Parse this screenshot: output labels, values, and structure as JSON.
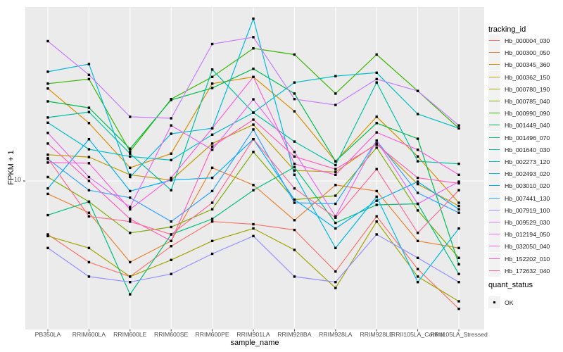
{
  "chart_data": {
    "type": "line",
    "title": "",
    "xlabel": "sample_name",
    "ylabel": "FPKM + 1",
    "y_scale": "log10",
    "y_ticks": [
      {
        "value": 10,
        "label": "10"
      }
    ],
    "y_range_approx": [
      1.6,
      92
    ],
    "grid": "major-on",
    "legend_position": "right",
    "marker": "filled-black-square",
    "x_categories": [
      "PB350LA",
      "RRIM600LA",
      "RRIM600LE",
      "RRIM600SE",
      "RRIM600PE",
      "RRIM901LA",
      "RRIM928BA",
      "RRIM928LA",
      "RRIM928LE",
      "RRII105LA_Control",
      "RRII105LA_Stressed"
    ],
    "series": [
      {
        "name": "Hb_000004_030",
        "color": "#F8766D",
        "values": [
          5.1,
          3.6,
          3.0,
          4.4,
          6.0,
          5.8,
          5.4,
          3.2,
          6.4,
          3.3,
          2.0
        ]
      },
      {
        "name": "Hb_000300_050",
        "color": "#EA8331",
        "values": [
          8.5,
          6.7,
          3.6,
          4.7,
          11.8,
          9.5,
          6.1,
          9.5,
          8.8,
          4.7,
          4.3
        ]
      },
      {
        "name": "Hb_000345_360",
        "color": "#D89000",
        "values": [
          32,
          20.7,
          11.8,
          14.1,
          34,
          37,
          24,
          12.8,
          22.4,
          13.6,
          7.6
        ]
      },
      {
        "name": "Hb_000362_150",
        "color": "#C09B00",
        "values": [
          13.9,
          13.5,
          10.8,
          10.1,
          16,
          20.3,
          11.4,
          11.2,
          16,
          9.6,
          7.3
        ]
      },
      {
        "name": "Hb_000780_190",
        "color": "#A3A500",
        "values": [
          5.0,
          4.3,
          3.0,
          3.7,
          4.7,
          5.5,
          4.2,
          2.6,
          6.0,
          3.0,
          2.2
        ]
      },
      {
        "name": "Hb_000785_040",
        "color": "#7CAE00",
        "values": [
          10.5,
          7.7,
          5.2,
          5.6,
          7.0,
          14.4,
          7.9,
          8.3,
          15.2,
          6.9,
          3.8
        ]
      },
      {
        "name": "Hb_000990_090",
        "color": "#39B600",
        "values": [
          34,
          36,
          14.5,
          28,
          37,
          53,
          49,
          30,
          49,
          31,
          19.4
        ]
      },
      {
        "name": "Hb_001449_040",
        "color": "#00BB4E",
        "values": [
          27.2,
          25.1,
          15,
          27.7,
          32.2,
          41,
          30,
          12.8,
          20.7,
          17,
          3.5
        ]
      },
      {
        "name": "Hb_001496_070",
        "color": "#00BF7D",
        "values": [
          6.5,
          7.7,
          2.4,
          5.1,
          6.2,
          8.9,
          11.9,
          5.9,
          7.4,
          7.5,
          3.1
        ]
      },
      {
        "name": "Hb_001640_030",
        "color": "#00C1A3",
        "values": [
          22.2,
          23.8,
          14.1,
          8.9,
          40.6,
          23.6,
          16.4,
          12.2,
          34.5,
          12.8,
          12.4
        ]
      },
      {
        "name": "Hb_002273_120",
        "color": "#00BFC4",
        "values": [
          20.8,
          14.9,
          13.6,
          13,
          17.9,
          23.6,
          34.5,
          37.4,
          39,
          23.2,
          19.4
        ]
      },
      {
        "name": "Hb_002493_020",
        "color": "#00BAE0",
        "values": [
          39.5,
          43.5,
          10.5,
          18.1,
          19.4,
          77,
          10.8,
          4.3,
          8.2,
          2.8,
          5.5
        ]
      },
      {
        "name": "Hb_003010_020",
        "color": "#00B0F6",
        "values": [
          9.1,
          16.9,
          8.8,
          10.1,
          10.4,
          16.9,
          7.9,
          5.5,
          7.8,
          9.9,
          7.0
        ]
      },
      {
        "name": "Hb_007441_130",
        "color": "#35A2FF",
        "values": [
          13.2,
          8.9,
          8.1,
          6.0,
          8.8,
          19.1,
          7.6,
          7.5,
          16.6,
          8.6,
          6.7
        ]
      },
      {
        "name": "Hb_007919_100",
        "color": "#9590FF",
        "values": [
          4.3,
          3.0,
          2.8,
          3.1,
          4.0,
          5.0,
          3.0,
          2.8,
          5.1,
          3.8,
          2.8
        ]
      },
      {
        "name": "Hb_009529_030",
        "color": "#C77CFF",
        "values": [
          58,
          38,
          22.4,
          22,
          56,
          61,
          28,
          26,
          36,
          31,
          20.1
        ]
      },
      {
        "name": "Hb_012194_050",
        "color": "#E76BF3",
        "values": [
          18.3,
          10.5,
          7.2,
          20.1,
          14.8,
          27.9,
          14.4,
          6.4,
          16.6,
          7.5,
          9.9
        ]
      },
      {
        "name": "Hb_032050_040",
        "color": "#FA62DB",
        "values": [
          12.6,
          12.5,
          7.0,
          10.4,
          19.4,
          37,
          12.4,
          10.8,
          18.4,
          14.8,
          10.8
        ]
      },
      {
        "name": "Hb_152202_010",
        "color": "#FF62BC",
        "values": [
          16,
          10,
          6.2,
          4.7,
          15.4,
          21.6,
          13.6,
          11.6,
          15.8,
          10.4,
          9.7
        ]
      },
      {
        "name": "Hb_172632_040",
        "color": "#FF6A98",
        "values": [
          13.3,
          6.4,
          6.0,
          5.1,
          7.6,
          16.9,
          9.1,
          6.3,
          11.6,
          5.2,
          8.9
        ]
      }
    ],
    "legend": {
      "series_title": "tracking_id",
      "shape_title": "quant_status",
      "shape_items": [
        {
          "label": "OK",
          "marker": "filled-black-square",
          "color": "#000000"
        }
      ]
    },
    "colors": {
      "panel_bg": "#EBEBEB",
      "grid": "#FFFFFF",
      "legend_key_bg": "#F2F2F2",
      "axis_text": "#4D4D4D",
      "tick_mark": "#333333",
      "point": "#000000"
    }
  }
}
